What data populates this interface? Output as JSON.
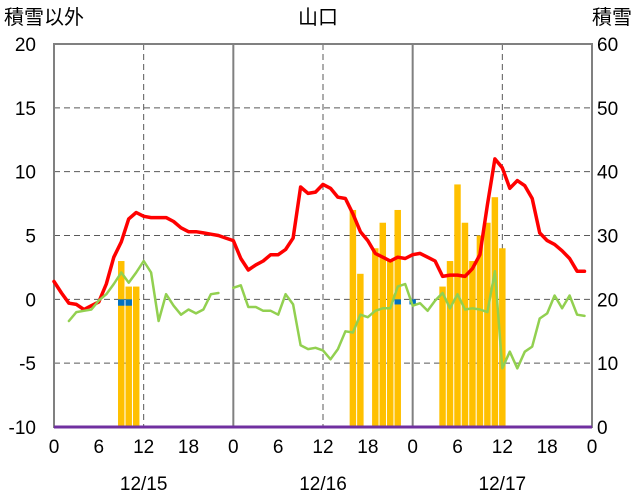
{
  "chart_data": {
    "type": "bar+line",
    "title": "山口",
    "left_axis_label": "積雪以外",
    "right_axis_label": "積雪",
    "left_ylim": [
      -10,
      20
    ],
    "left_ticks": [
      -10,
      -5,
      0,
      5,
      10,
      15,
      20
    ],
    "right_ylim": [
      0,
      60
    ],
    "right_ticks": [
      0,
      10,
      20,
      30,
      40,
      50,
      60
    ],
    "x_hours_total": 72,
    "x_tick_labels": [
      "0",
      "6",
      "12",
      "18",
      "0",
      "6",
      "12",
      "18",
      "0",
      "6",
      "12",
      "18",
      "0"
    ],
    "date_labels": [
      "12/15",
      "12/16",
      "12/17"
    ],
    "grid": true,
    "colors": {
      "red_line": "#ff0000",
      "green_line": "#92d050",
      "yellow_bars": "#ffc000",
      "blue_bars": "#0070c0",
      "purple_line": "#7030a0",
      "frame": "#808080"
    },
    "series": [
      {
        "kind": "line",
        "axis": "left",
        "color": "red",
        "x": [
          0,
          1,
          2,
          3,
          4,
          5,
          6,
          7,
          8,
          9,
          10,
          11,
          12,
          13,
          14,
          15,
          16,
          17,
          18,
          19,
          20,
          21,
          22,
          23,
          24,
          25,
          26,
          27,
          28,
          29,
          30,
          31,
          32,
          33,
          34,
          35,
          36,
          37,
          38,
          39,
          40,
          41,
          42,
          43,
          44,
          45,
          46,
          47,
          48,
          49,
          50,
          51,
          52,
          53,
          54,
          55,
          56,
          57,
          58,
          59,
          60,
          61,
          62,
          63,
          64,
          65,
          66,
          67,
          68,
          69,
          70,
          71
        ],
        "y": [
          1.4,
          0.5,
          -0.3,
          -0.4,
          -0.8,
          -0.5,
          -0.2,
          1.2,
          3.3,
          4.5,
          6.3,
          6.8,
          6.5,
          6.4,
          6.4,
          6.4,
          6.1,
          5.6,
          5.3,
          5.3,
          5.2,
          5.1,
          5.0,
          4.8,
          4.6,
          3.2,
          2.3,
          2.7,
          3.0,
          3.5,
          3.5,
          3.9,
          4.8,
          8.8,
          8.3,
          8.4,
          9.0,
          8.7,
          8.0,
          7.9,
          6.7,
          5.3,
          4.6,
          3.6,
          3.3,
          3.0,
          3.3,
          3.2,
          3.5,
          3.6,
          3.3,
          3.0,
          1.8,
          1.9,
          1.9,
          1.8,
          2.4,
          3.5,
          7.4,
          11.0,
          10.3,
          8.7,
          9.3,
          8.9,
          7.9,
          5.2,
          4.6,
          4.3,
          3.8,
          3.2,
          2.2,
          2.2
        ]
      },
      {
        "kind": "line",
        "axis": "left",
        "color": "green",
        "x": [
          2,
          3,
          4,
          5,
          6,
          7,
          8,
          9,
          10,
          11,
          12,
          13,
          14,
          15,
          16,
          17,
          18,
          19,
          20,
          21,
          22,
          null,
          24,
          25,
          26,
          27,
          28,
          29,
          30,
          31,
          32,
          33,
          34,
          35,
          36,
          37,
          38,
          39,
          40,
          41,
          42,
          43,
          44,
          45,
          46,
          47,
          48,
          49,
          50,
          51,
          52,
          53,
          54,
          55,
          56,
          57,
          58,
          59,
          60,
          61,
          62,
          63,
          64,
          65,
          66,
          67,
          68,
          69,
          70,
          71
        ],
        "y": [
          -1.7,
          -1.0,
          -0.9,
          -0.8,
          -0.1,
          0.4,
          1.2,
          2.1,
          1.3,
          2.1,
          3.0,
          2.1,
          -1.7,
          0.4,
          -0.5,
          -1.2,
          -0.8,
          -1.1,
          -0.8,
          0.4,
          0.5,
          null,
          0.9,
          1.1,
          -0.6,
          -0.6,
          -0.9,
          -0.9,
          -1.2,
          0.4,
          -0.4,
          -3.6,
          -3.9,
          -3.8,
          -4.0,
          -4.7,
          -3.9,
          -2.5,
          -2.6,
          -1.2,
          -1.4,
          -0.9,
          -0.7,
          -0.7,
          1.0,
          1.2,
          -0.5,
          -0.3,
          -0.9,
          -0.1,
          0.5,
          -0.7,
          0.4,
          -0.8,
          -0.7,
          -0.8,
          -1.0,
          2.2,
          -5.4,
          -4.1,
          -5.4,
          -4.1,
          -3.7,
          -1.5,
          -1.1,
          0.3,
          -0.7,
          0.3,
          -1.2,
          -1.3
        ]
      },
      {
        "kind": "bar",
        "axis": "right",
        "color": "yellow",
        "name": "積雪",
        "x": [
          9,
          10,
          11,
          40,
          41,
          43,
          44,
          45,
          46,
          47,
          48,
          52,
          53,
          54,
          55,
          56,
          57,
          58,
          59,
          60
        ],
        "y": [
          26,
          22,
          22,
          34,
          24,
          28,
          32,
          26,
          34,
          0,
          0,
          22,
          26,
          38,
          32,
          26,
          30,
          32,
          36,
          28
        ]
      },
      {
        "kind": "bar",
        "axis": "left",
        "color": "blue",
        "x": [
          9,
          10,
          46,
          48
        ],
        "y": [
          -0.5,
          -0.5,
          -0.4,
          -0.4
        ]
      }
    ]
  }
}
